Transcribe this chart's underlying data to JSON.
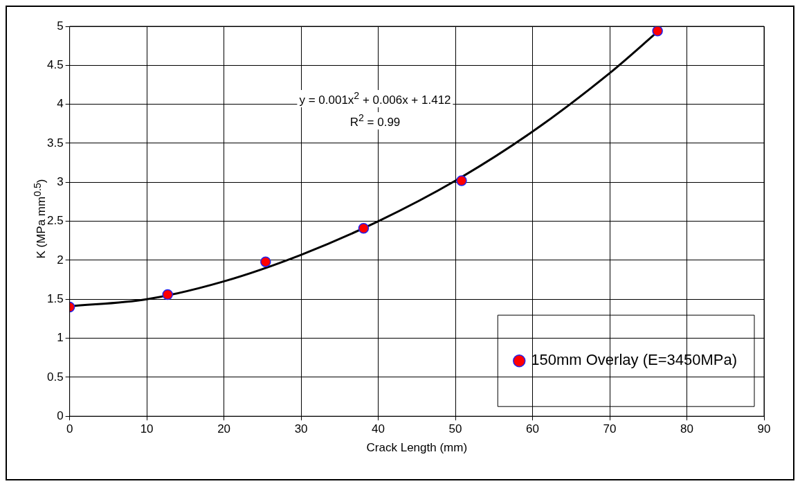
{
  "chart_data": {
    "type": "scatter",
    "xlabel": "Crack Length (mm)",
    "ylabel": "K (MPa mm$^{0.5}$)",
    "annotations": [
      "y = 0.001x$^{2}$ + 0.006x + 1.412",
      "R$^{2}$ = 0.99"
    ],
    "series": [
      {
        "name": "150mm Overlay (E=3450MPa)",
        "type": "scatter",
        "color": "#ff0000",
        "marker": "circle",
        "x": [
          0,
          12.7,
          25.4,
          38.1,
          50.8,
          76.2
        ],
        "values": [
          1.4,
          1.56,
          1.98,
          2.41,
          3.02,
          4.94
        ]
      },
      {
        "type": "line",
        "color": "#000000",
        "marker": "none",
        "x": [
          0,
          10,
          20,
          30,
          40,
          50,
          60,
          70,
          76.2
        ],
        "values": [
          1.41,
          1.5,
          1.73,
          2.07,
          2.5,
          3.02,
          3.65,
          4.4,
          4.93
        ]
      }
    ],
    "xlim": [
      0,
      90
    ],
    "xticks": [
      0,
      10,
      20,
      30,
      40,
      50,
      60,
      70,
      80,
      90
    ],
    "ylim": [
      0,
      5
    ],
    "yticks": [
      0,
      0.5,
      1,
      1.5,
      2,
      2.5,
      3,
      3.5,
      4,
      4.5,
      5
    ],
    "grid": true,
    "legend": "bottom right"
  }
}
